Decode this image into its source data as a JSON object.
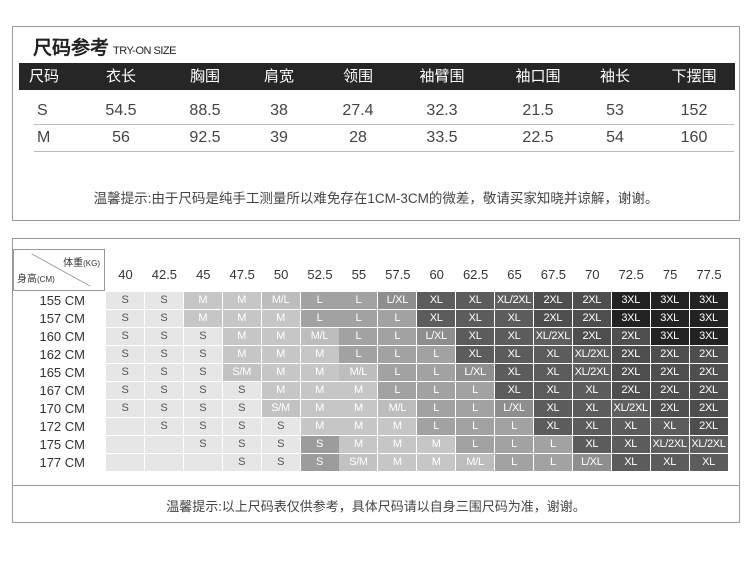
{
  "size_table": {
    "title": "尺码参考",
    "subtitle": "TRY-ON SIZE",
    "headers": [
      "尺码",
      "衣长",
      "胸围",
      "肩宽",
      "领围",
      "袖臂围",
      "袖口围",
      "袖长",
      "下摆围"
    ],
    "rows": [
      [
        "S",
        "54.5",
        "88.5",
        "38",
        "27.4",
        "32.3",
        "21.5",
        "53",
        "152"
      ],
      [
        "M",
        "56",
        "92.5",
        "39",
        "28",
        "33.5",
        "22.5",
        "54",
        "160"
      ]
    ],
    "note": "温馨提示:由于尺码是纯手工测量所以难免存在1CM-3CM的微差，敬请买家知晓并谅解，谢谢。"
  },
  "recommend_table": {
    "corner_weight": "体重",
    "corner_weight_unit": "(KG)",
    "corner_height": "身高",
    "corner_height_unit": "(CM)",
    "weights": [
      "40",
      "42.5",
      "45",
      "47.5",
      "50",
      "52.5",
      "55",
      "57.5",
      "60",
      "62.5",
      "65",
      "67.5",
      "70",
      "72.5",
      "75",
      "77.5"
    ],
    "heights": [
      "155 CM",
      "157 CM",
      "160 CM",
      "162 CM",
      "165 CM",
      "167 CM",
      "170 CM",
      "172 CM",
      "175 CM",
      "177 CM"
    ],
    "cells": [
      [
        "S",
        "S",
        "M",
        "M",
        "M/L",
        "L",
        "L",
        "L/XL",
        "XL",
        "XL",
        "XL/2XL",
        "2XL",
        "2XL",
        "3XL",
        "3XL",
        "3XL"
      ],
      [
        "S",
        "S",
        "M",
        "M",
        "M",
        "L",
        "L",
        "L",
        "XL",
        "XL",
        "XL",
        "2XL",
        "2XL",
        "3XL",
        "3XL",
        "3XL"
      ],
      [
        "S",
        "S",
        "S",
        "M",
        "M",
        "M/L",
        "L",
        "L",
        "L/XL",
        "XL",
        "XL",
        "XL/2XL",
        "2XL",
        "2XL",
        "3XL",
        "3XL"
      ],
      [
        "S",
        "S",
        "S",
        "M",
        "M",
        "M",
        "L",
        "L",
        "L",
        "XL",
        "XL",
        "XL",
        "XL/2XL",
        "2XL",
        "2XL",
        "2XL"
      ],
      [
        "S",
        "S",
        "S",
        "S/M",
        "M",
        "M",
        "M/L",
        "L",
        "L",
        "L/XL",
        "XL",
        "XL",
        "XL/2XL",
        "2XL",
        "2XL",
        "2XL"
      ],
      [
        "S",
        "S",
        "S",
        "S",
        "M",
        "M",
        "M",
        "L",
        "L",
        "L",
        "XL",
        "XL",
        "XL",
        "2XL",
        "2XL",
        "2XL"
      ],
      [
        "S",
        "S",
        "S",
        "S",
        "S/M",
        "M",
        "M",
        "M/L",
        "L",
        "L",
        "L/XL",
        "XL",
        "XL",
        "XL/2XL",
        "2XL",
        "2XL"
      ],
      [
        "",
        "S",
        "S",
        "S",
        "S",
        "M",
        "M",
        "M",
        "L",
        "L",
        "L",
        "XL",
        "XL",
        "XL",
        "XL",
        "2XL"
      ],
      [
        "",
        "",
        "S",
        "S",
        "S",
        "S",
        "M",
        "M",
        "M",
        "L",
        "L",
        "L",
        "XL",
        "XL",
        "XL/2XL",
        "XL/2XL"
      ],
      [
        "",
        "",
        "",
        "S",
        "S",
        "S",
        "S/M",
        "M",
        "M",
        "M/L",
        "L",
        "L",
        "L/XL",
        "XL",
        "XL",
        "XL"
      ]
    ],
    "size_colors": {
      "": "#e6e6e6",
      "S": "#e6e6e6",
      "S/M": "#c2c2c2",
      "M": "#c6c6c6",
      "M/L": "#bdbdbd",
      "L": "#a2a2a2",
      "L/XL": "#8e8e8e",
      "XL": "#5c5c5c",
      "XL/2XL": "#5f5f5f",
      "2XL": "#4e4e4e",
      "3XL": "#222222"
    },
    "note": "温馨提示:以上尺码表仅供参考，具体尺码请以自身三围尺码为准，谢谢。"
  }
}
